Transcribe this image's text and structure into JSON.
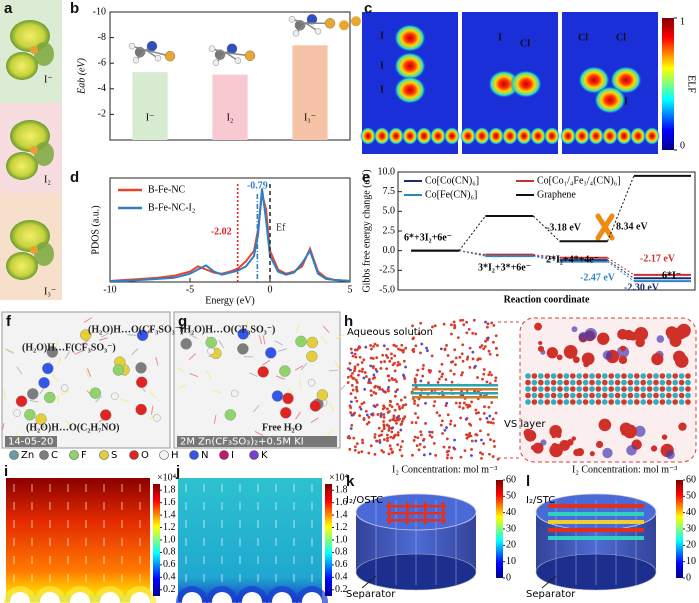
{
  "panels": {
    "a": {
      "letter": "a",
      "labels": [
        "I⁻",
        "I₂",
        "I₃⁻"
      ]
    },
    "c": {
      "letter": "c",
      "labels": [
        [
          "I",
          "I",
          "I"
        ],
        [
          "I",
          "Cl"
        ],
        [
          "Cl",
          "Cl",
          "I"
        ]
      ],
      "colorbar": {
        "label": "ELF",
        "lim": [
          0,
          1
        ],
        "ticks": [
          0,
          1
        ]
      }
    },
    "atom_legend": {
      "labels": [
        "Zn",
        "C",
        "F",
        "S",
        "O",
        "H",
        "N",
        "I",
        "K"
      ],
      "colors": [
        "#6f9aa3",
        "#7d7d7d",
        "#8fd46a",
        "#e3cf3a",
        "#e02424",
        "#f2f2f2",
        "#3355e8",
        "#c0166e",
        "#7a3fc9"
      ]
    },
    "f": {
      "letter": "f",
      "labels": [
        "(H₂O)H…F(CF₃SO₃⁻)",
        "(H₂O)H…O(CF₃SO₃⁻)",
        "(H₂O)H…O(C₂H₇NO)"
      ],
      "stamp": "14-05-20"
    },
    "g": {
      "letter": "g",
      "labels": [
        "(H₂O)H…O(CF₃SO₃⁻)",
        "Free H₂O"
      ],
      "stamp": "2M Zn(CF₃SO₃)₂+0.5M KI"
    },
    "h": {
      "letter": "h",
      "labels": [
        "Aqueous solution",
        "VS layer"
      ]
    },
    "i": {
      "letter": "i",
      "colorbar": {
        "unit": "×10⁴",
        "lim": [
          0.1,
          1.9
        ],
        "ticks": [
          0.2,
          0.4,
          0.6,
          0.8,
          {
            "value": 1,
            "label": "1.0"
          },
          1.2,
          1.4,
          1.6,
          1.8
        ]
      }
    },
    "j": {
      "letter": "j",
      "colorbar": {
        "unit": "×10⁴",
        "lim": [
          0.1,
          1.9
        ],
        "ticks": [
          0.2,
          0.4,
          0.6,
          0.8,
          {
            "value": 1,
            "label": "1.0"
          },
          1.2,
          1.4,
          1.6,
          1.8
        ]
      }
    },
    "k": {
      "letter": "k",
      "title": "I₂ Concentration: mol m⁻³",
      "labels": [
        "I₂/OSTC",
        "Separator"
      ],
      "colorbar": {
        "lim": [
          0,
          60
        ],
        "ticks": [
          0,
          10,
          20,
          30,
          40,
          50,
          60
        ]
      }
    },
    "l": {
      "letter": "l",
      "title": "I₂ Concentration: mol m⁻³",
      "labels": [
        "I₂/STC",
        "Separator"
      ],
      "colorbar": {
        "lim": [
          0,
          60
        ],
        "ticks": [
          0,
          10,
          20,
          30,
          40,
          50,
          60
        ]
      }
    }
  },
  "chart_data": [
    {
      "type": "bar",
      "letter": "b",
      "ylabel": "Eab (eV)",
      "categories": [
        "I⁻",
        "I₂",
        "I₃⁻"
      ],
      "values": [
        -5.3,
        -5.1,
        -7.4
      ],
      "colors": [
        "#d6ebcf",
        "#f8c9d0",
        "#f7c3a6"
      ],
      "ylim": [
        0,
        -10
      ],
      "yticks": [
        -10,
        -8,
        -6,
        -4,
        -2
      ]
    },
    {
      "type": "line",
      "letter": "d",
      "xlabel": "Energy (eV)",
      "ylabel": "PDOS (a.u.)",
      "x": [
        -10,
        -9,
        -8,
        -7,
        -6,
        -5.5,
        -5,
        -4.5,
        -4,
        -3.5,
        -3,
        -2.5,
        -2,
        -1.5,
        -1,
        -0.75,
        -0.5,
        -0.25,
        0,
        0.5,
        1,
        1.5,
        2,
        2.5,
        3,
        3.5,
        4,
        5
      ],
      "series": [
        {
          "name": "B-Fe-NC",
          "color": "#e8432c",
          "values": [
            0.1,
            0.2,
            0.3,
            0.4,
            0.6,
            0.8,
            1.0,
            1.5,
            1.2,
            0.9,
            0.8,
            1.0,
            1.3,
            2.0,
            3.0,
            5.0,
            8.5,
            7.0,
            3.0,
            1.2,
            0.8,
            1.0,
            1.5,
            3.2,
            1.0,
            0.4,
            0.2,
            0.1
          ]
        },
        {
          "name": "B-Fe-NC-I₂",
          "color": "#2f7fc4",
          "values": [
            0.1,
            0.1,
            0.2,
            0.3,
            0.4,
            0.6,
            0.8,
            1.2,
            1.6,
            1.0,
            0.7,
            0.9,
            1.1,
            1.5,
            2.5,
            4.5,
            9.0,
            6.0,
            2.5,
            1.0,
            0.7,
            0.9,
            1.8,
            3.0,
            0.8,
            0.3,
            0.2,
            0.1
          ]
        }
      ],
      "xlim": [
        -10,
        5
      ],
      "xticks": [
        -10,
        -5,
        0,
        5
      ],
      "ylim": [
        0,
        10
      ],
      "annotations": [
        {
          "text": "-2.02",
          "x": -2.02,
          "color": "#e02020"
        },
        {
          "text": "-0.79",
          "x": -0.79,
          "color": "#2f7fc4"
        },
        {
          "text": "Ef",
          "x": 0,
          "color": "#333333"
        }
      ]
    },
    {
      "type": "step",
      "letter": "e",
      "xlabel": "Reaction coordinate",
      "ylabel": "Gibbs free energy change (eV)",
      "categories": [
        "6*+3I₂+6e⁻",
        "3*I₂+3*+6e⁻",
        "2*I₂+4*+4e⁻",
        "6*I⁻"
      ],
      "series": [
        {
          "name": "Co[Co(CN)₆]",
          "color": "#1d2a72",
          "values": [
            0,
            -0.6,
            -1.2,
            -3.5
          ]
        },
        {
          "name": "Co[Co₁/₄Fe₃/₄(CN)₆]",
          "color": "#c83232",
          "values": [
            0,
            -0.5,
            -0.9,
            -3.07
          ]
        },
        {
          "name": "Co[Fe(CN)₆]",
          "color": "#2e86c1",
          "values": [
            0,
            -0.7,
            -1.4,
            -3.87
          ]
        },
        {
          "name": "Graphene",
          "color": "#111111",
          "values": [
            0,
            4.4,
            1.2,
            9.5
          ]
        }
      ],
      "annotations": [
        {
          "text": "-3.18 eV",
          "color": "#111111"
        },
        {
          "text": "8.34 eV",
          "color": "#111111"
        },
        {
          "text": "-2.17 eV",
          "color": "#c83232"
        },
        {
          "text": "-2.47 eV",
          "color": "#2e86c1"
        },
        {
          "text": "-2.30 eV",
          "color": "#1d2a72"
        }
      ],
      "ylim": [
        -5,
        10
      ],
      "yticks": [
        {
          "value": -5,
          "label": "-5.0"
        },
        -2.5,
        {
          "value": 0,
          "label": "0.0"
        },
        2.5,
        {
          "value": 5,
          "label": "5.0"
        },
        7.5,
        {
          "value": 10,
          "label": "10.0"
        }
      ]
    }
  ]
}
